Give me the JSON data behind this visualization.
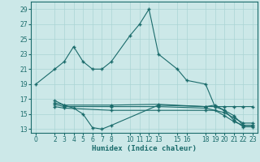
{
  "xlabel": "Humidex (Indice chaleur)",
  "bg_color": "#cce8e8",
  "line_color": "#1a6b6b",
  "grid_color": "#aad4d4",
  "xlim": [
    -0.5,
    23.5
  ],
  "ylim": [
    12.5,
    30
  ],
  "yticks": [
    13,
    15,
    17,
    19,
    21,
    23,
    25,
    27,
    29
  ],
  "xticks": [
    0,
    2,
    3,
    4,
    5,
    6,
    7,
    8,
    10,
    11,
    12,
    13,
    15,
    16,
    18,
    19,
    20,
    21,
    22,
    23
  ],
  "line1_x": [
    0,
    2,
    3,
    4,
    5,
    6,
    7,
    8,
    10,
    11,
    12,
    13,
    15,
    16,
    18,
    19,
    20,
    21,
    22,
    23
  ],
  "line1_y": [
    19,
    21,
    22,
    24,
    22,
    21,
    21,
    22,
    25.5,
    27,
    29,
    23,
    21,
    19.5,
    19,
    16,
    16,
    16,
    16,
    16
  ],
  "line2_x": [
    2,
    3,
    4,
    5,
    6,
    7,
    8,
    13,
    18,
    19,
    20,
    21,
    22,
    23
  ],
  "line2_y": [
    16.8,
    16.2,
    15.8,
    15.0,
    13.2,
    13.0,
    13.5,
    16.2,
    16.0,
    16.0,
    15.5,
    14.2,
    13.3,
    13.3
  ],
  "line3_x": [
    2,
    3,
    8,
    13,
    18,
    19,
    20,
    21,
    22,
    23
  ],
  "line3_y": [
    16.5,
    16.2,
    16.2,
    16.3,
    16.0,
    16.2,
    15.5,
    14.8,
    13.5,
    13.5
  ],
  "line4_x": [
    2,
    3,
    8,
    13,
    18,
    20,
    21,
    22,
    23
  ],
  "line4_y": [
    16.3,
    16.0,
    16.0,
    16.0,
    15.8,
    15.2,
    14.5,
    13.8,
    13.8
  ],
  "line5_x": [
    2,
    3,
    8,
    13,
    18,
    19,
    20,
    21,
    22,
    23
  ],
  "line5_y": [
    16.0,
    15.8,
    15.5,
    15.5,
    15.5,
    15.5,
    14.8,
    14.0,
    13.5,
    13.5
  ]
}
